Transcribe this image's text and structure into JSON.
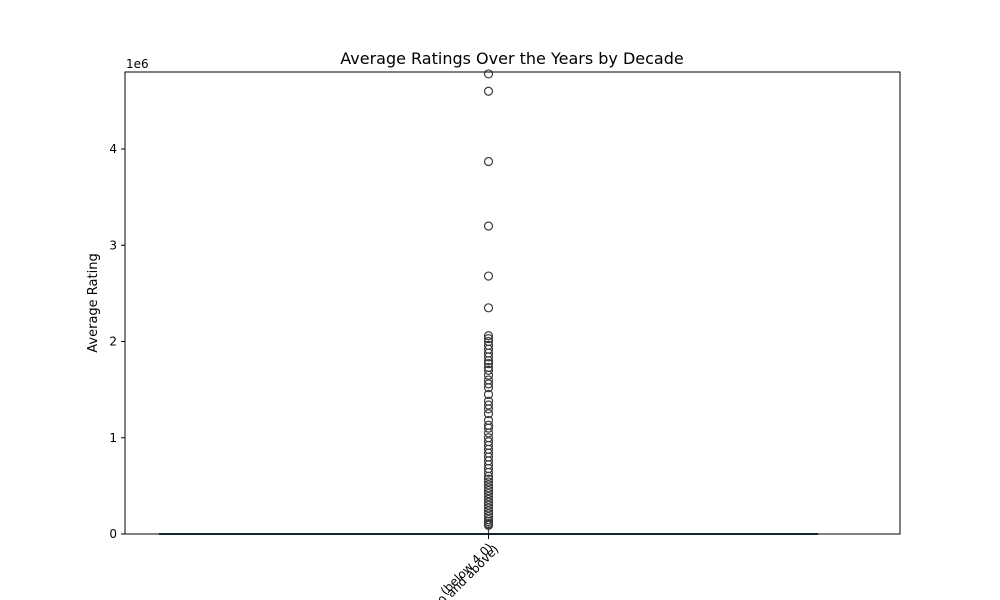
{
  "chart_data": {
    "type": "box",
    "title": "Average Ratings Over the Years by Decade",
    "ylabel": "Average Rating",
    "xlabel": "",
    "y_scale_label": "1e6",
    "ylim": [
      0,
      4800000
    ],
    "yticks": [
      0,
      1000000,
      2000000,
      3000000,
      4000000
    ],
    "ytick_labels": [
      "0",
      "1",
      "2",
      "3",
      "4"
    ],
    "categories": [
      "(below 4.0)",
      "(4.0 and above)"
    ],
    "box": {
      "q1": 0,
      "median": 0,
      "q3": 0,
      "whisker_low": 0,
      "whisker_high": 80000
    },
    "fliers": [
      4780000,
      4600000,
      3870000,
      3200000,
      2680000,
      2350000,
      2060000,
      2030000,
      2000000,
      1960000,
      1920000,
      1880000,
      1840000,
      1800000,
      1770000,
      1730000,
      1700000,
      1650000,
      1600000,
      1560000,
      1520000,
      1450000,
      1380000,
      1340000,
      1300000,
      1250000,
      1180000,
      1130000,
      1100000,
      1050000,
      1000000,
      960000,
      920000,
      880000,
      840000,
      800000,
      760000,
      720000,
      680000,
      640000,
      600000,
      570000,
      540000,
      510000,
      480000,
      450000,
      420000,
      390000,
      360000,
      330000,
      300000,
      270000,
      240000,
      210000,
      180000,
      150000,
      130000,
      110000,
      100000,
      90000
    ],
    "colors": {
      "box": "#1f4e5f",
      "flier": "#3b3b3b",
      "axis": "#000000"
    },
    "grid": false
  }
}
